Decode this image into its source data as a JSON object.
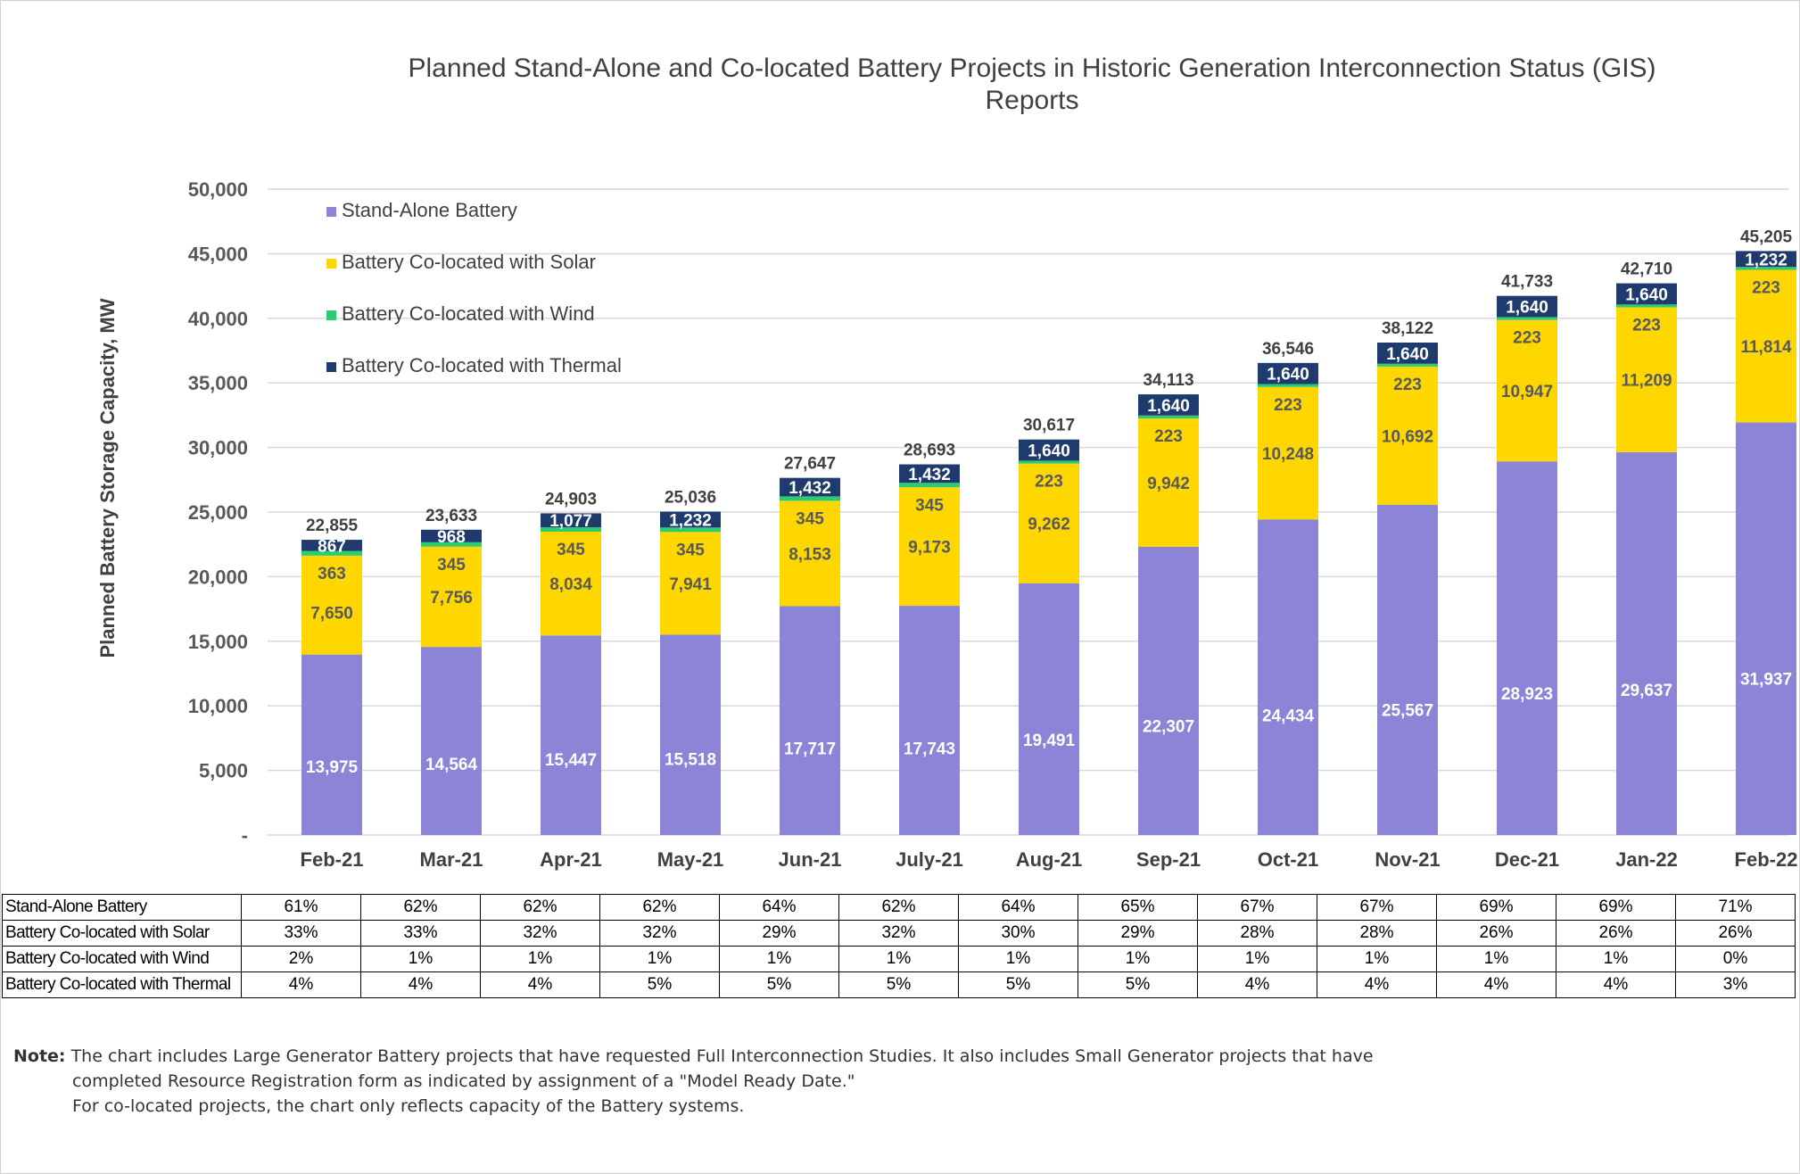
{
  "chart_data": {
    "type": "bar",
    "stacked": true,
    "title": "Planned Stand-Alone and Co-located Battery Projects in Historic Generation Interconnection Status (GIS) Reports",
    "ylabel": "Planned Battery Storage Capacity, MW",
    "xlabel": "",
    "ylim": [
      0,
      50000
    ],
    "yticks": [
      "-",
      "5,000",
      "10,000",
      "15,000",
      "20,000",
      "25,000",
      "30,000",
      "35,000",
      "40,000",
      "45,000",
      "50,000"
    ],
    "grid": true,
    "legend_position": "top-left",
    "categories": [
      "Feb-21",
      "Mar-21",
      "Apr-21",
      "May-21",
      "Jun-21",
      "July-21",
      "Aug-21",
      "Sep-21",
      "Oct-21",
      "Nov-21",
      "Dec-21",
      "Jan-22",
      "Feb-22"
    ],
    "series": [
      {
        "name": "Stand-Alone Battery",
        "color": "#8B84D7",
        "values": [
          13975,
          14564,
          15447,
          15518,
          17717,
          17743,
          19491,
          22307,
          24434,
          25567,
          28923,
          29637,
          31937
        ],
        "labels": [
          "13,975",
          "14,564",
          "15,447",
          "15,518",
          "17,717",
          "17,743",
          "19,491",
          "22,307",
          "24,434",
          "25,567",
          "28,923",
          "29,637",
          "31,937"
        ]
      },
      {
        "name": "Battery Co-located with Solar",
        "color": "#FFD700",
        "values": [
          7650,
          7756,
          8034,
          7941,
          8153,
          9173,
          9262,
          9942,
          10248,
          10692,
          10947,
          11209,
          11814
        ],
        "labels": [
          "7,650",
          "7,756",
          "8,034",
          "7,941",
          "8,153",
          "9,173",
          "9,262",
          "9,942",
          "10,248",
          "10,692",
          "10,947",
          "11,209",
          "11,814"
        ]
      },
      {
        "name": "Battery Co-located with Wind",
        "color": "#2ECC71",
        "values": [
          363,
          345,
          345,
          345,
          345,
          345,
          223,
          223,
          223,
          223,
          223,
          223,
          223
        ],
        "labels": [
          "363",
          "345",
          "345",
          "345",
          "345",
          "345",
          "223",
          "223",
          "223",
          "223",
          "223",
          "223",
          "223"
        ]
      },
      {
        "name": "Battery Co-located with Thermal",
        "color": "#1F3B6E",
        "values": [
          867,
          968,
          1077,
          1232,
          1432,
          1432,
          1640,
          1640,
          1640,
          1640,
          1640,
          1640,
          1232
        ],
        "labels": [
          "867",
          "968",
          "1,077",
          "1,232",
          "1,432",
          "1,432",
          "1,640",
          "1,640",
          "1,640",
          "1,640",
          "1,640",
          "1,640",
          "1,232"
        ]
      }
    ],
    "totals": [
      "22,855",
      "23,633",
      "24,903",
      "25,036",
      "27,647",
      "28,693",
      "30,617",
      "34,113",
      "36,546",
      "38,122",
      "41,733",
      "42,710",
      "45,205"
    ],
    "totals_values": [
      22855,
      23633,
      24903,
      25036,
      27647,
      28693,
      30617,
      34113,
      36546,
      38122,
      41733,
      42710,
      45205
    ]
  },
  "table": {
    "rows": [
      {
        "label": "Stand-Alone Battery",
        "cells": [
          "61%",
          "62%",
          "62%",
          "62%",
          "64%",
          "62%",
          "64%",
          "65%",
          "67%",
          "67%",
          "69%",
          "69%",
          "71%"
        ]
      },
      {
        "label": "Battery Co-located with Solar",
        "cells": [
          "33%",
          "33%",
          "32%",
          "32%",
          "29%",
          "32%",
          "30%",
          "29%",
          "28%",
          "28%",
          "26%",
          "26%",
          "26%"
        ]
      },
      {
        "label": "Battery Co-located with Wind",
        "cells": [
          "2%",
          "1%",
          "1%",
          "1%",
          "1%",
          "1%",
          "1%",
          "1%",
          "1%",
          "1%",
          "1%",
          "1%",
          "0%"
        ]
      },
      {
        "label": "Battery Co-located with Thermal",
        "cells": [
          "4%",
          "4%",
          "4%",
          "5%",
          "5%",
          "5%",
          "5%",
          "5%",
          "4%",
          "4%",
          "4%",
          "4%",
          "3%"
        ]
      }
    ]
  },
  "note": {
    "label": "Note:",
    "line1": "The chart includes Large Generator Battery projects that have requested Full Interconnection Studies. It also includes Small Generator projects that have",
    "line2": "completed Resource Registration form as indicated by assignment of a \"Model Ready Date.\"",
    "line3": "For co-located projects, the chart only reflects capacity of the Battery systems."
  }
}
